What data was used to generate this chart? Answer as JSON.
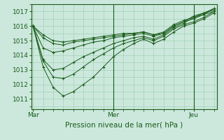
{
  "title": "Pression niveau de la mer( hPa )",
  "bg_color": "#cce8dd",
  "grid_color": "#99ccaa",
  "line_color": "#1a5c1a",
  "tick_label_color": "#1a5c1a",
  "x_ticks_pos": [
    0,
    48,
    96
  ],
  "x_tick_labels": [
    "Mar",
    "Mer",
    "Jeu"
  ],
  "ylim": [
    1010.3,
    1017.5
  ],
  "yticks": [
    1011,
    1012,
    1013,
    1014,
    1015,
    1016,
    1017
  ],
  "xlim": [
    -1,
    110
  ],
  "vline_x": 48,
  "vline2_x": 96,
  "series": [
    {
      "x": [
        0,
        6,
        12,
        18,
        24,
        30,
        36,
        42,
        48,
        54,
        60,
        66,
        72,
        78,
        84,
        90,
        96,
        102,
        108
      ],
      "y": [
        1016.0,
        1015.4,
        1015.0,
        1014.9,
        1015.0,
        1015.1,
        1015.2,
        1015.3,
        1015.4,
        1015.5,
        1015.5,
        1015.6,
        1015.4,
        1015.5,
        1016.0,
        1016.3,
        1016.5,
        1016.8,
        1017.0
      ]
    },
    {
      "x": [
        0,
        6,
        12,
        18,
        24,
        30,
        36,
        42,
        48,
        54,
        60,
        66,
        72,
        78,
        84,
        90,
        96,
        102,
        108
      ],
      "y": [
        1016.0,
        1015.2,
        1014.8,
        1014.7,
        1014.9,
        1015.0,
        1015.1,
        1015.2,
        1015.3,
        1015.4,
        1015.5,
        1015.6,
        1015.4,
        1015.6,
        1016.1,
        1016.4,
        1016.6,
        1016.9,
        1017.1
      ]
    },
    {
      "x": [
        0,
        6,
        12,
        18,
        24,
        30,
        36,
        42,
        48,
        54,
        60,
        66,
        72,
        78,
        84,
        90,
        96,
        102,
        108
      ],
      "y": [
        1016.0,
        1014.5,
        1014.2,
        1014.3,
        1014.5,
        1014.7,
        1014.9,
        1015.0,
        1015.2,
        1015.3,
        1015.4,
        1015.5,
        1015.3,
        1015.5,
        1016.0,
        1016.3,
        1016.7,
        1016.9,
        1017.2
      ]
    },
    {
      "x": [
        0,
        6,
        12,
        18,
        24,
        30,
        36,
        42,
        48,
        54,
        60,
        66,
        72,
        78,
        84,
        90,
        96,
        102,
        108
      ],
      "y": [
        1016.0,
        1013.7,
        1013.0,
        1013.1,
        1013.5,
        1013.9,
        1014.2,
        1014.5,
        1014.8,
        1015.0,
        1015.2,
        1015.3,
        1015.1,
        1015.4,
        1015.9,
        1016.2,
        1016.6,
        1016.8,
        1017.2
      ]
    },
    {
      "x": [
        0,
        6,
        12,
        18,
        24,
        30,
        36,
        42,
        48,
        54,
        60,
        66,
        72,
        78,
        84,
        90,
        96,
        102,
        108
      ],
      "y": [
        1016.0,
        1013.6,
        1012.5,
        1012.4,
        1012.7,
        1013.2,
        1013.7,
        1014.1,
        1014.5,
        1014.8,
        1015.0,
        1015.2,
        1015.0,
        1015.3,
        1015.8,
        1016.1,
        1016.3,
        1016.6,
        1017.0
      ]
    },
    {
      "x": [
        0,
        6,
        12,
        18,
        24,
        30,
        36,
        42,
        48,
        54,
        60,
        66,
        72,
        78,
        84,
        90,
        96,
        102,
        108
      ],
      "y": [
        1016.0,
        1013.2,
        1011.8,
        1011.2,
        1011.5,
        1012.0,
        1012.5,
        1013.2,
        1013.9,
        1014.4,
        1014.8,
        1015.1,
        1014.8,
        1015.1,
        1015.6,
        1016.0,
        1016.2,
        1016.5,
        1016.9
      ]
    }
  ]
}
